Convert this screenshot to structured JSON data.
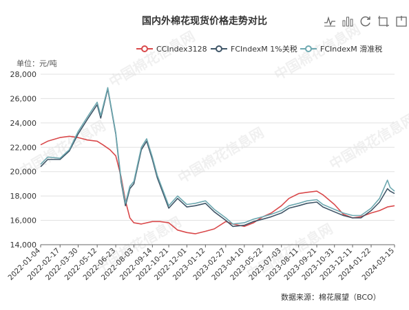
{
  "title": "国内外棉花现货价格走势对比",
  "unit_label": "单位：元/吨",
  "source_label": "数据来源：棉花展望（BCO）",
  "watermark": "中国棉花信息网",
  "toolbox": [
    {
      "name": "line-view-icon"
    },
    {
      "name": "bar-view-icon"
    },
    {
      "name": "restore-icon"
    },
    {
      "name": "save-image-icon"
    },
    {
      "name": "data-view-icon"
    }
  ],
  "colors": {
    "cc": "#d9484a",
    "fc1": "#3f5567",
    "fc2": "#6da8b0",
    "grid": "#e0e0e0",
    "axis": "#666666",
    "text": "#333333"
  },
  "chart_data": {
    "type": "line",
    "title": "国内外棉花现货价格走势对比",
    "ylabel": "单位：元/吨",
    "ylim": [
      14000,
      28000
    ],
    "y_ticks": [
      14000,
      16000,
      18000,
      20000,
      22000,
      24000,
      26000,
      28000
    ],
    "y_tick_labels": [
      "14,000",
      "16,000",
      "18,000",
      "20,000",
      "22,000",
      "24,000",
      "26,000",
      "28,000"
    ],
    "x_tick_labels": [
      "2022-01-04",
      "2022-02-17",
      "2022-03-30",
      "2022-05-12",
      "2022-06-23",
      "2022-08-03",
      "2022-09-14",
      "2022-10-21",
      "2022-12-01",
      "2023-01-12",
      "2023-02-27",
      "2023-04-10",
      "2023-05-22",
      "2023-07-03",
      "2023-08-11",
      "2023-09-21",
      "2023-10-31",
      "2023-12-11",
      "2024-01-22",
      "2024-03-15"
    ],
    "legend_position": "top-center",
    "grid": true,
    "series": [
      {
        "name": "CCIndex3128",
        "color": "#d9484a",
        "points": [
          [
            "2022-01-04",
            22200
          ],
          [
            "2022-01-20",
            22500
          ],
          [
            "2022-02-17",
            22800
          ],
          [
            "2022-03-10",
            22900
          ],
          [
            "2022-03-30",
            22800
          ],
          [
            "2022-04-20",
            22600
          ],
          [
            "2022-05-12",
            22500
          ],
          [
            "2022-05-25",
            22200
          ],
          [
            "2022-06-10",
            21800
          ],
          [
            "2022-06-23",
            21300
          ],
          [
            "2022-07-05",
            19600
          ],
          [
            "2022-07-15",
            17600
          ],
          [
            "2022-07-25",
            16200
          ],
          [
            "2022-08-03",
            15800
          ],
          [
            "2022-08-20",
            15700
          ],
          [
            "2022-09-14",
            15900
          ],
          [
            "2022-10-01",
            15900
          ],
          [
            "2022-10-21",
            15800
          ],
          [
            "2022-11-10",
            15200
          ],
          [
            "2022-12-01",
            15000
          ],
          [
            "2022-12-20",
            14900
          ],
          [
            "2023-01-12",
            15100
          ],
          [
            "2023-02-01",
            15300
          ],
          [
            "2023-02-27",
            15900
          ],
          [
            "2023-03-15",
            15700
          ],
          [
            "2023-04-10",
            15500
          ],
          [
            "2023-05-01",
            15800
          ],
          [
            "2023-05-22",
            16300
          ],
          [
            "2023-06-10",
            16600
          ],
          [
            "2023-07-03",
            17200
          ],
          [
            "2023-07-20",
            17800
          ],
          [
            "2023-08-11",
            18200
          ],
          [
            "2023-08-30",
            18300
          ],
          [
            "2023-09-21",
            18400
          ],
          [
            "2023-10-05",
            18100
          ],
          [
            "2023-10-31",
            17300
          ],
          [
            "2023-11-20",
            16500
          ],
          [
            "2023-12-11",
            16200
          ],
          [
            "2023-12-30",
            16300
          ],
          [
            "2024-01-22",
            16600
          ],
          [
            "2024-02-10",
            16800
          ],
          [
            "2024-02-28",
            17100
          ],
          [
            "2024-03-15",
            17200
          ]
        ]
      },
      {
        "name": "FCIndexM 1%关税",
        "color": "#3f5567",
        "points": [
          [
            "2022-01-04",
            20400
          ],
          [
            "2022-01-20",
            21000
          ],
          [
            "2022-02-17",
            21000
          ],
          [
            "2022-03-10",
            21700
          ],
          [
            "2022-03-30",
            23100
          ],
          [
            "2022-04-20",
            24300
          ],
          [
            "2022-05-12",
            25500
          ],
          [
            "2022-05-20",
            24400
          ],
          [
            "2022-06-05",
            26800
          ],
          [
            "2022-06-23",
            23100
          ],
          [
            "2022-07-05",
            19200
          ],
          [
            "2022-07-15",
            17200
          ],
          [
            "2022-07-25",
            18600
          ],
          [
            "2022-08-03",
            19000
          ],
          [
            "2022-08-20",
            21800
          ],
          [
            "2022-09-01",
            22500
          ],
          [
            "2022-09-14",
            21000
          ],
          [
            "2022-09-25",
            19500
          ],
          [
            "2022-10-21",
            17000
          ],
          [
            "2022-11-10",
            17800
          ],
          [
            "2022-12-01",
            17100
          ],
          [
            "2022-12-20",
            17200
          ],
          [
            "2023-01-12",
            17400
          ],
          [
            "2023-02-01",
            16700
          ],
          [
            "2023-02-27",
            16000
          ],
          [
            "2023-03-15",
            15500
          ],
          [
            "2023-04-10",
            15600
          ],
          [
            "2023-05-01",
            15900
          ],
          [
            "2023-05-22",
            16100
          ],
          [
            "2023-06-10",
            16300
          ],
          [
            "2023-07-03",
            16600
          ],
          [
            "2023-07-20",
            17000
          ],
          [
            "2023-08-11",
            17200
          ],
          [
            "2023-08-30",
            17400
          ],
          [
            "2023-09-21",
            17500
          ],
          [
            "2023-10-05",
            17100
          ],
          [
            "2023-10-31",
            16700
          ],
          [
            "2023-11-20",
            16400
          ],
          [
            "2023-12-11",
            16200
          ],
          [
            "2023-12-30",
            16200
          ],
          [
            "2024-01-22",
            16800
          ],
          [
            "2024-02-10",
            17500
          ],
          [
            "2024-02-28",
            18600
          ],
          [
            "2024-03-05",
            18400
          ],
          [
            "2024-03-15",
            18200
          ]
        ]
      },
      {
        "name": "FCIndexM 滑准税",
        "color": "#6da8b0",
        "points": [
          [
            "2022-01-04",
            20600
          ],
          [
            "2022-01-20",
            21200
          ],
          [
            "2022-02-17",
            21100
          ],
          [
            "2022-03-10",
            21800
          ],
          [
            "2022-03-30",
            23300
          ],
          [
            "2022-04-20",
            24500
          ],
          [
            "2022-05-12",
            25700
          ],
          [
            "2022-05-20",
            24600
          ],
          [
            "2022-06-05",
            26900
          ],
          [
            "2022-06-23",
            23200
          ],
          [
            "2022-07-05",
            19400
          ],
          [
            "2022-07-15",
            17400
          ],
          [
            "2022-07-25",
            18800
          ],
          [
            "2022-08-03",
            19200
          ],
          [
            "2022-08-20",
            22000
          ],
          [
            "2022-09-01",
            22700
          ],
          [
            "2022-09-14",
            21200
          ],
          [
            "2022-09-25",
            19700
          ],
          [
            "2022-10-21",
            17200
          ],
          [
            "2022-11-10",
            18000
          ],
          [
            "2022-12-01",
            17300
          ],
          [
            "2022-12-20",
            17400
          ],
          [
            "2023-01-12",
            17600
          ],
          [
            "2023-02-01",
            16900
          ],
          [
            "2023-02-27",
            16200
          ],
          [
            "2023-03-15",
            15700
          ],
          [
            "2023-04-10",
            15800
          ],
          [
            "2023-05-01",
            16100
          ],
          [
            "2023-05-22",
            16300
          ],
          [
            "2023-06-10",
            16500
          ],
          [
            "2023-07-03",
            16800
          ],
          [
            "2023-07-20",
            17200
          ],
          [
            "2023-08-11",
            17400
          ],
          [
            "2023-08-30",
            17600
          ],
          [
            "2023-09-21",
            17700
          ],
          [
            "2023-10-05",
            17300
          ],
          [
            "2023-10-31",
            16900
          ],
          [
            "2023-11-20",
            16600
          ],
          [
            "2023-12-11",
            16400
          ],
          [
            "2023-12-30",
            16400
          ],
          [
            "2024-01-22",
            17000
          ],
          [
            "2024-02-10",
            17800
          ],
          [
            "2024-02-28",
            19300
          ],
          [
            "2024-03-05",
            18700
          ],
          [
            "2024-03-15",
            18400
          ]
        ]
      }
    ]
  }
}
